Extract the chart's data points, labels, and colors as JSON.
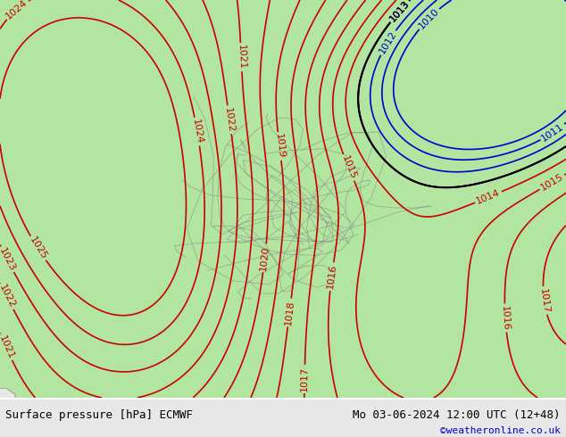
{
  "title_left": "Surface pressure [hPa] ECMWF",
  "title_right": "Mo 03-06-2024 12:00 UTC (12+48)",
  "credit": "©weatheronline.co.uk",
  "credit_color": "#0000cc",
  "background_color": "#e8e8e8",
  "land_color": "#b3e6a0",
  "sea_color": "#e8e8e8",
  "contour_color_red": "#cc0000",
  "contour_color_blue": "#0000cc",
  "contour_color_black": "#000000",
  "contour_color_gray": "#888888",
  "label_fontsize": 8,
  "footer_fontsize": 9,
  "credit_fontsize": 8,
  "pressure_min": 1010,
  "pressure_max": 1024,
  "fig_width": 6.34,
  "fig_height": 4.9
}
